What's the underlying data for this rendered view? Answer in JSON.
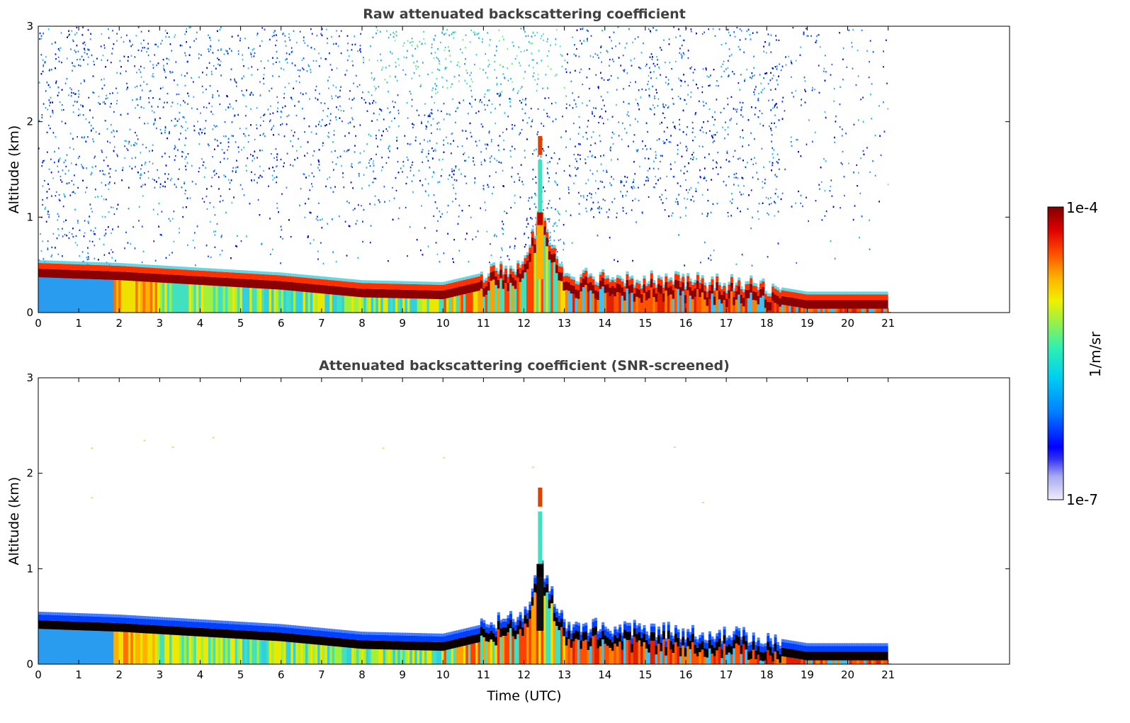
{
  "chart_data": [
    {
      "type": "heatmap",
      "title": "Raw attenuated backscattering coefficient",
      "xlabel": "",
      "ylabel": "Altitude (km)",
      "xlim": [
        0,
        24
      ],
      "ylim": [
        0,
        3
      ],
      "x_ticks": [
        "0",
        "1",
        "2",
        "3",
        "4",
        "5",
        "6",
        "7",
        "8",
        "9",
        "10",
        "11",
        "12",
        "13",
        "14",
        "15",
        "16",
        "17",
        "18",
        "19",
        "20",
        "21"
      ],
      "y_ticks": [
        "0",
        "1",
        "2",
        "3"
      ],
      "data_end_hour": 21,
      "noise": "dense noise above ~0.6 km up to 3 km",
      "boundary_layer_top_km": [
        {
          "x": 0,
          "y": 0.48
        },
        {
          "x": 2,
          "y": 0.45
        },
        {
          "x": 4,
          "y": 0.4
        },
        {
          "x": 6,
          "y": 0.35
        },
        {
          "x": 8,
          "y": 0.27
        },
        {
          "x": 10,
          "y": 0.25
        },
        {
          "x": 11,
          "y": 0.35
        },
        {
          "x": 12,
          "y": 0.45
        },
        {
          "x": 12.4,
          "y": 1.0
        },
        {
          "x": 13,
          "y": 0.35
        },
        {
          "x": 15,
          "y": 0.3
        },
        {
          "x": 17,
          "y": 0.25
        },
        {
          "x": 18,
          "y": 0.22
        },
        {
          "x": 19,
          "y": 0.15
        },
        {
          "x": 21,
          "y": 0.15
        }
      ],
      "plume": {
        "x": 12.4,
        "y_top_km": 1.85
      }
    },
    {
      "type": "heatmap",
      "title": "Attenuated backscattering coefficient (SNR-screened)",
      "xlabel": "Time (UTC)",
      "ylabel": "Altitude (km)",
      "xlim": [
        0,
        24
      ],
      "ylim": [
        0,
        3
      ],
      "x_ticks": [
        "0",
        "1",
        "2",
        "3",
        "4",
        "5",
        "6",
        "7",
        "8",
        "9",
        "10",
        "11",
        "12",
        "13",
        "14",
        "15",
        "16",
        "17",
        "18",
        "19",
        "20",
        "21"
      ],
      "y_ticks": [
        "0",
        "1",
        "2",
        "3"
      ],
      "data_end_hour": 21,
      "noise": "screened, almost no noise above boundary layer",
      "boundary_layer_top_km": [
        {
          "x": 0,
          "y": 0.48
        },
        {
          "x": 2,
          "y": 0.45
        },
        {
          "x": 4,
          "y": 0.4
        },
        {
          "x": 6,
          "y": 0.35
        },
        {
          "x": 8,
          "y": 0.27
        },
        {
          "x": 10,
          "y": 0.25
        },
        {
          "x": 11,
          "y": 0.35
        },
        {
          "x": 12,
          "y": 0.45
        },
        {
          "x": 12.4,
          "y": 1.0
        },
        {
          "x": 13,
          "y": 0.35
        },
        {
          "x": 15,
          "y": 0.3
        },
        {
          "x": 17,
          "y": 0.25
        },
        {
          "x": 18,
          "y": 0.22
        },
        {
          "x": 19,
          "y": 0.15
        },
        {
          "x": 21,
          "y": 0.15
        }
      ],
      "plume": {
        "x": 12.4,
        "y_top_km": 1.85
      }
    }
  ],
  "colorbar": {
    "max_label": "1e-4",
    "min_label": "1e-7",
    "unit_label": "1/m/sr",
    "scale": "log",
    "colormap": [
      "#e8e8f8",
      "#b0b0f0",
      "#7070f0",
      "#0000f0",
      "#0050ff",
      "#00a0ff",
      "#00e0e0",
      "#40f0a0",
      "#a0f040",
      "#f0f000",
      "#ffb000",
      "#ff6000",
      "#f01000",
      "#c00000",
      "#800000"
    ]
  }
}
